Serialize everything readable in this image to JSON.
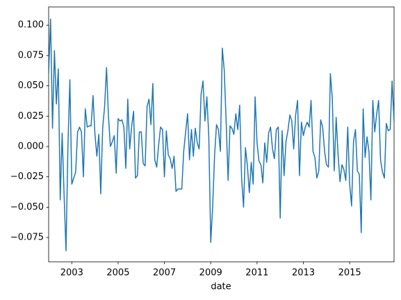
{
  "chart_data": {
    "type": "line",
    "x_label": "date",
    "x": [
      2002.0,
      2002.083,
      2002.167,
      2002.25,
      2002.333,
      2002.417,
      2002.5,
      2002.583,
      2002.667,
      2002.75,
      2002.833,
      2002.917,
      2003.0,
      2003.083,
      2003.167,
      2003.25,
      2003.333,
      2003.417,
      2003.5,
      2003.583,
      2003.667,
      2003.75,
      2003.833,
      2003.917,
      2004.0,
      2004.083,
      2004.167,
      2004.25,
      2004.333,
      2004.417,
      2004.5,
      2004.583,
      2004.667,
      2004.75,
      2004.833,
      2004.917,
      2005.0,
      2005.083,
      2005.167,
      2005.25,
      2005.333,
      2005.417,
      2005.5,
      2005.583,
      2005.667,
      2005.75,
      2005.833,
      2005.917,
      2006.0,
      2006.083,
      2006.167,
      2006.25,
      2006.333,
      2006.417,
      2006.5,
      2006.583,
      2006.667,
      2006.75,
      2006.833,
      2006.917,
      2007.0,
      2007.083,
      2007.167,
      2007.25,
      2007.333,
      2007.417,
      2007.5,
      2007.583,
      2007.667,
      2007.75,
      2007.833,
      2007.917,
      2008.0,
      2008.083,
      2008.167,
      2008.25,
      2008.333,
      2008.417,
      2008.5,
      2008.583,
      2008.667,
      2008.75,
      2008.833,
      2008.917,
      2009.0,
      2009.083,
      2009.167,
      2009.25,
      2009.333,
      2009.417,
      2009.5,
      2009.583,
      2009.667,
      2009.75,
      2009.833,
      2009.917,
      2010.0,
      2010.083,
      2010.167,
      2010.25,
      2010.333,
      2010.417,
      2010.5,
      2010.583,
      2010.667,
      2010.75,
      2010.833,
      2010.917,
      2011.0,
      2011.083,
      2011.167,
      2011.25,
      2011.333,
      2011.417,
      2011.5,
      2011.583,
      2011.667,
      2011.75,
      2011.833,
      2011.917,
      2012.0,
      2012.083,
      2012.167,
      2012.25,
      2012.333,
      2012.417,
      2012.5,
      2012.583,
      2012.667,
      2012.75,
      2012.833,
      2012.917,
      2013.0,
      2013.083,
      2013.167,
      2013.25,
      2013.333,
      2013.417,
      2013.5,
      2013.583,
      2013.667,
      2013.75,
      2013.833,
      2013.917,
      2014.0,
      2014.083,
      2014.167,
      2014.25,
      2014.333,
      2014.417,
      2014.5,
      2014.583,
      2014.667,
      2014.75,
      2014.833,
      2014.917,
      2015.0,
      2015.083,
      2015.167,
      2015.25,
      2015.333,
      2015.417,
      2015.5,
      2015.583,
      2015.667,
      2015.75,
      2015.833,
      2015.917,
      2016.0,
      2016.083,
      2016.167,
      2016.25,
      2016.333,
      2016.417,
      2016.5,
      2016.583,
      2016.667,
      2016.75,
      2016.833,
      2016.917
    ],
    "series": [
      {
        "color": "#1f77b4",
        "values": [
          0.06,
          0.105,
          0.015,
          0.079,
          0.035,
          0.064,
          -0.044,
          0.011,
          -0.04,
          -0.086,
          0.0,
          0.055,
          -0.031,
          -0.026,
          -0.021,
          0.012,
          0.016,
          0.012,
          -0.025,
          0.031,
          0.016,
          0.017,
          0.017,
          0.042,
          0.01,
          -0.008,
          0.01,
          -0.039,
          0.015,
          0.033,
          0.065,
          0.025,
          0.0,
          0.004,
          0.009,
          -0.022,
          0.023,
          0.021,
          0.022,
          0.016,
          -0.018,
          0.039,
          -0.002,
          0.016,
          0.029,
          -0.026,
          -0.024,
          0.012,
          0.012,
          -0.014,
          -0.016,
          0.033,
          0.039,
          0.018,
          0.052,
          -0.011,
          -0.017,
          0.001,
          0.016,
          0.014,
          -0.025,
          0.013,
          -0.007,
          -0.01,
          -0.018,
          -0.008,
          -0.037,
          -0.035,
          -0.035,
          -0.035,
          -0.004,
          0.012,
          0.027,
          -0.011,
          0.014,
          -0.008,
          0.015,
          0.003,
          -0.002,
          0.043,
          0.054,
          0.021,
          0.041,
          0.008,
          -0.079,
          -0.05,
          -0.007,
          0.018,
          0.014,
          -0.004,
          0.081,
          0.063,
          0.02,
          -0.028,
          0.017,
          0.015,
          0.01,
          0.027,
          0.014,
          0.034,
          -0.026,
          -0.05,
          -0.001,
          -0.016,
          -0.038,
          -0.013,
          -0.031,
          0.041,
          0.003,
          -0.012,
          -0.015,
          -0.03,
          0.003,
          -0.013,
          0.011,
          0.016,
          -0.002,
          -0.01,
          0.014,
          0.016,
          -0.059,
          0.013,
          -0.024,
          0.004,
          0.013,
          0.026,
          0.021,
          -0.002,
          0.026,
          0.038,
          -0.024,
          0.02,
          0.009,
          0.016,
          0.02,
          0.016,
          0.038,
          -0.004,
          -0.009,
          -0.026,
          -0.02,
          0.022,
          0.016,
          -0.004,
          -0.015,
          -0.017,
          0.06,
          0.04,
          -0.02,
          0.024,
          -0.007,
          -0.029,
          -0.015,
          -0.019,
          -0.028,
          0.016,
          -0.031,
          -0.049,
          0.004,
          0.014,
          -0.02,
          -0.023,
          -0.071,
          0.031,
          -0.009,
          0.008,
          -0.004,
          -0.044,
          0.038,
          0.012,
          0.027,
          0.038,
          -0.011,
          -0.021,
          -0.026,
          0.019,
          0.013,
          0.014,
          0.054,
          0.02
        ]
      }
    ],
    "xlim": [
      2002.0,
      2016.917
    ],
    "xticks": [
      2003,
      2005,
      2007,
      2009,
      2011,
      2013,
      2015
    ],
    "ylim": [
      -0.095,
      0.115
    ],
    "yticks": [
      {
        "value": -0.075,
        "label": "−0.075"
      },
      {
        "value": -0.05,
        "label": "−0.050"
      },
      {
        "value": -0.025,
        "label": "−0.025"
      },
      {
        "value": 0,
        "label": "0.000"
      },
      {
        "value": 0.025,
        "label": "0.025"
      },
      {
        "value": 0.05,
        "label": "0.050"
      },
      {
        "value": 0.075,
        "label": "0.075"
      },
      {
        "value": 0.1,
        "label": "0.100"
      }
    ]
  }
}
